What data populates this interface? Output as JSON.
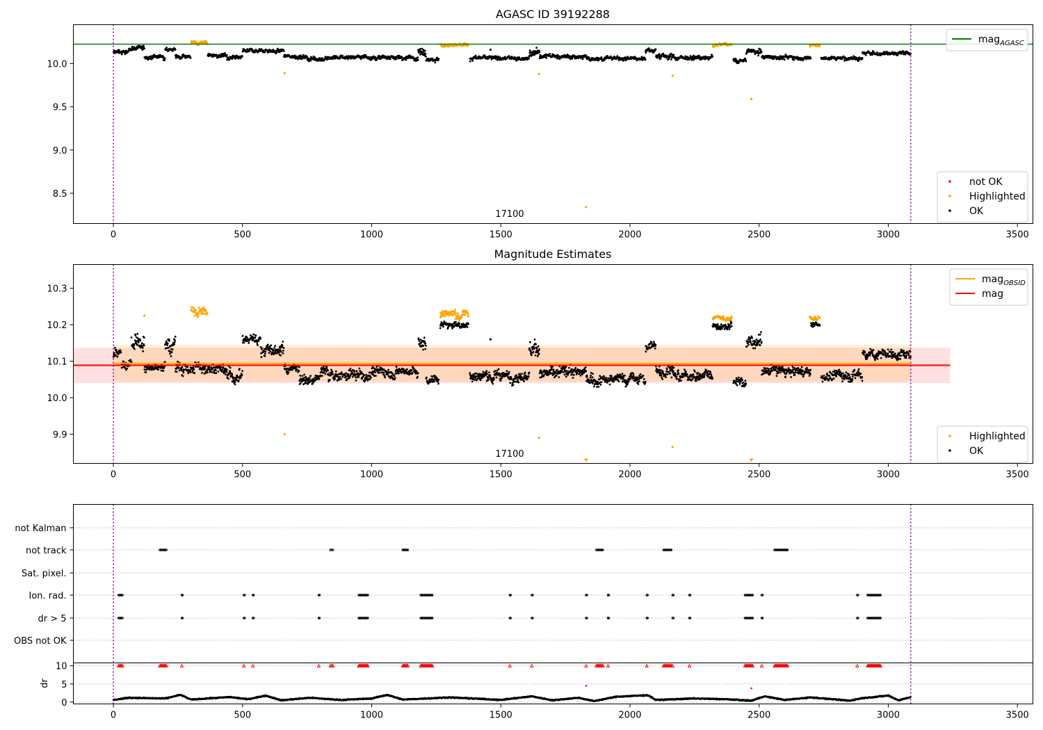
{
  "chart_data": [
    {
      "type": "scatter",
      "title": "AGASC ID 39192288",
      "xlim": [
        -155,
        3560
      ],
      "ylim": [
        8.15,
        10.45
      ],
      "xticks": [
        "0",
        "500",
        "1000",
        "1500",
        "2000",
        "2500",
        "3000",
        "3500"
      ],
      "yticks": [
        "8.5",
        "9.0",
        "9.5",
        "10.0"
      ],
      "obsid_label": "17100",
      "obsid_lines": [
        0,
        3087
      ],
      "reference_line": {
        "name": "mag",
        "sub": "AGASC",
        "value": 10.225,
        "color": "#008000",
        "x_end": 3560
      },
      "legend_top": [
        {
          "label": "mag",
          "sub": "AGASC",
          "color": "#008000"
        }
      ],
      "legend_bottom": [
        {
          "label": "not OK",
          "color": "#ff0000"
        },
        {
          "label": "Highlighted",
          "color": "#ffa500"
        },
        {
          "label": "OK",
          "color": "#000000"
        }
      ],
      "series": [
        {
          "name": "OK",
          "color": "#000000",
          "segments": [
            [
              0,
              60,
              10.13,
              0.025
            ],
            [
              60,
              120,
              10.18,
              0.02
            ],
            [
              120,
              200,
              10.08,
              0.02
            ],
            [
              200,
              240,
              10.17,
              0.02
            ],
            [
              240,
              300,
              10.08,
              0.02
            ],
            [
              365,
              440,
              10.09,
              0.02
            ],
            [
              440,
              500,
              10.06,
              0.02
            ],
            [
              500,
              570,
              10.15,
              0.02
            ],
            [
              570,
              660,
              10.15,
              0.02
            ],
            [
              660,
              750,
              10.08,
              0.02
            ],
            [
              750,
              850,
              10.06,
              0.02
            ],
            [
              850,
              1000,
              10.07,
              0.02
            ],
            [
              1000,
              1180,
              10.07,
              0.02
            ],
            [
              1180,
              1210,
              10.14,
              0.04
            ],
            [
              1210,
              1260,
              10.05,
              0.02
            ],
            [
              1380,
              1610,
              10.06,
              0.02
            ],
            [
              1610,
              1650,
              10.12,
              0.04
            ],
            [
              1650,
              1830,
              10.08,
              0.02
            ],
            [
              1830,
              2060,
              10.06,
              0.02
            ],
            [
              2060,
              2100,
              10.15,
              0.02
            ],
            [
              2100,
              2170,
              10.08,
              0.03
            ],
            [
              2170,
              2320,
              10.07,
              0.02
            ],
            [
              2400,
              2450,
              10.04,
              0.02
            ],
            [
              2450,
              2510,
              10.14,
              0.03
            ],
            [
              2510,
              2700,
              10.07,
              0.02
            ],
            [
              2740,
              2900,
              10.06,
              0.02
            ],
            [
              2900,
              3087,
              10.12,
              0.02
            ]
          ],
          "points": [
            [
              1460,
              10.16
            ]
          ]
        },
        {
          "name": "Highlighted",
          "color": "#ffa500",
          "segments": [
            [
              300,
              365,
              10.24,
              0.015
            ],
            [
              1265,
              1375,
              10.22,
              0.015
            ],
            [
              2320,
              2395,
              10.21,
              0.015
            ],
            [
              2695,
              2735,
              10.21,
              0.01
            ]
          ],
          "points": [
            [
              663,
              9.89
            ],
            [
              1648,
              9.88
            ],
            [
              1830,
              8.34
            ],
            [
              2165,
              9.86
            ],
            [
              2470,
              9.59
            ]
          ]
        }
      ]
    },
    {
      "type": "scatter",
      "title": "Magnitude Estimates",
      "xlim": [
        -155,
        3560
      ],
      "ylim": [
        9.82,
        10.365
      ],
      "xticks": [
        "0",
        "500",
        "1000",
        "1500",
        "2000",
        "2500",
        "3000",
        "3500"
      ],
      "yticks": [
        "9.9",
        "10.0",
        "10.1",
        "10.2",
        "10.3"
      ],
      "obsid_label": "17100",
      "obsid_lines": [
        0,
        3087
      ],
      "bands": [
        {
          "y0": 10.04,
          "y1": 10.137,
          "x0": -155,
          "x1": 3240,
          "color": "#ff0000",
          "opacity": 0.12
        },
        {
          "y0": 10.045,
          "y1": 10.145,
          "x0": 0,
          "x1": 3087,
          "color": "#ffa500",
          "opacity": 0.16
        }
      ],
      "lines": [
        {
          "name": "mag",
          "sub": "OBSID",
          "value": 10.094,
          "color": "#ffa500",
          "x0": 0,
          "x1": 3087
        },
        {
          "name": "mag",
          "value": 10.089,
          "color": "#ff0000",
          "x0": -155,
          "x1": 3240
        }
      ],
      "legend_top": [
        {
          "label": "mag",
          "sub": "OBSID",
          "color": "#ffa500"
        },
        {
          "label": "mag",
          "color": "#ff0000"
        }
      ],
      "legend_bottom": [
        {
          "label": "Highlighted",
          "color": "#ffa500"
        },
        {
          "label": "OK",
          "color": "#000000"
        }
      ],
      "series": [
        {
          "name": "OK",
          "color": "#000000",
          "segments": [
            [
              0,
              30,
              10.12,
              0.012
            ],
            [
              30,
              70,
              10.09,
              0.012
            ],
            [
              70,
              120,
              10.16,
              0.02
            ],
            [
              120,
              200,
              10.08,
              0.012
            ],
            [
              200,
              240,
              10.15,
              0.02
            ],
            [
              240,
              300,
              10.08,
              0.015
            ],
            [
              300,
              365,
              10.08,
              0.015
            ],
            [
              365,
              440,
              10.08,
              0.012
            ],
            [
              440,
              500,
              10.06,
              0.015
            ],
            [
              500,
              570,
              10.16,
              0.012
            ],
            [
              570,
              660,
              10.13,
              0.015
            ],
            [
              660,
              720,
              10.08,
              0.012
            ],
            [
              720,
              800,
              10.05,
              0.012
            ],
            [
              800,
              850,
              10.07,
              0.015
            ],
            [
              850,
              1000,
              10.06,
              0.012
            ],
            [
              1000,
              1180,
              10.07,
              0.012
            ],
            [
              1180,
              1210,
              10.15,
              0.02
            ],
            [
              1210,
              1260,
              10.05,
              0.012
            ],
            [
              1265,
              1375,
              10.2,
              0.008
            ],
            [
              1380,
              1610,
              10.06,
              0.012
            ],
            [
              1610,
              1650,
              10.13,
              0.02
            ],
            [
              1650,
              1830,
              10.07,
              0.012
            ],
            [
              1830,
              2060,
              10.05,
              0.012
            ],
            [
              2060,
              2100,
              10.14,
              0.012
            ],
            [
              2100,
              2170,
              10.08,
              0.015
            ],
            [
              2170,
              2320,
              10.06,
              0.012
            ],
            [
              2320,
              2395,
              10.2,
              0.01
            ],
            [
              2400,
              2450,
              10.04,
              0.01
            ],
            [
              2450,
              2510,
              10.15,
              0.02
            ],
            [
              2510,
              2700,
              10.07,
              0.012
            ],
            [
              2700,
              2735,
              10.2,
              0.005
            ],
            [
              2740,
              2900,
              10.06,
              0.012
            ],
            [
              2900,
              3087,
              10.12,
              0.012
            ]
          ],
          "points": [
            [
              1460,
              10.16
            ]
          ]
        },
        {
          "name": "Highlighted",
          "color": "#ffa500",
          "segments": [
            [
              300,
              365,
              10.24,
              0.012
            ],
            [
              1265,
              1375,
              10.23,
              0.01
            ],
            [
              2320,
              2395,
              10.22,
              0.005
            ],
            [
              2695,
              2735,
              10.22,
              0.005
            ]
          ],
          "points": [
            [
              663,
              9.9
            ],
            [
              1648,
              9.89
            ],
            [
              2165,
              9.865
            ]
          ],
          "clipped": [
            [
              1830
            ],
            [
              2470
            ]
          ],
          "extra": [
            [
              120,
              10.225
            ]
          ]
        }
      ]
    },
    {
      "type": "scatter",
      "title": "",
      "xlim": [
        -155,
        3560
      ],
      "xticks": [
        "0",
        "500",
        "1000",
        "1500",
        "2000",
        "2500",
        "3000",
        "3500"
      ],
      "obsid_lines": [
        0,
        3087
      ],
      "categories": [
        "not Kalman",
        "not track",
        "Sat. pixel.",
        "Ion. rad.",
        "dr > 5",
        "OBS not OK"
      ],
      "flags": {
        "not track": [
          [
            180,
            205
          ],
          [
            840,
            850
          ],
          [
            1120,
            1140
          ],
          [
            1870,
            1895
          ],
          [
            2130,
            2160
          ],
          [
            2560,
            2610
          ]
        ],
        "Ion. rad.": [
          [
            20,
            35
          ],
          [
            265,
            268
          ],
          [
            505,
            508
          ],
          [
            540,
            543
          ],
          [
            795,
            798
          ],
          [
            950,
            985
          ],
          [
            1190,
            1235
          ],
          [
            1535,
            1538
          ],
          [
            1620,
            1623
          ],
          [
            1830,
            1833
          ],
          [
            1915,
            1918
          ],
          [
            2065,
            2068
          ],
          [
            2165,
            2168
          ],
          [
            2230,
            2233
          ],
          [
            2445,
            2475
          ],
          [
            2510,
            2513
          ],
          [
            2880,
            2883
          ],
          [
            2920,
            2970
          ]
        ],
        "dr > 5": [
          [
            20,
            35
          ],
          [
            265,
            268
          ],
          [
            505,
            508
          ],
          [
            540,
            543
          ],
          [
            795,
            798
          ],
          [
            950,
            985
          ],
          [
            1190,
            1235
          ],
          [
            1535,
            1538
          ],
          [
            1620,
            1623
          ],
          [
            1830,
            1833
          ],
          [
            1915,
            1918
          ],
          [
            2065,
            2068
          ],
          [
            2165,
            2168
          ],
          [
            2230,
            2233
          ],
          [
            2445,
            2475
          ],
          [
            2510,
            2513
          ],
          [
            2880,
            2883
          ],
          [
            2920,
            2970
          ]
        ]
      },
      "dr": {
        "ylabel": "dr",
        "yticks": [
          "0",
          "5",
          "10"
        ],
        "ylim": [
          -0.5,
          10.8
        ],
        "outliers": [
          [
            20,
            35
          ],
          [
            180,
            205
          ],
          [
            265,
            268
          ],
          [
            505,
            508
          ],
          [
            540,
            543
          ],
          [
            795,
            798
          ],
          [
            840,
            850
          ],
          [
            950,
            985
          ],
          [
            1120,
            1140
          ],
          [
            1190,
            1235
          ],
          [
            1535,
            1538
          ],
          [
            1620,
            1623
          ],
          [
            1830,
            1833
          ],
          [
            1870,
            1895
          ],
          [
            1915,
            1918
          ],
          [
            2065,
            2068
          ],
          [
            2130,
            2160
          ],
          [
            2165,
            2168
          ],
          [
            2230,
            2233
          ],
          [
            2445,
            2475
          ],
          [
            2510,
            2513
          ],
          [
            2560,
            2610
          ],
          [
            2880,
            2883
          ],
          [
            2920,
            2970
          ]
        ],
        "mid_points": [
          [
            1830,
            4.5
          ],
          [
            2470,
            3.8
          ]
        ],
        "baseline": [
          [
            0,
            0.6
          ],
          [
            60,
            1.2
          ],
          [
            200,
            1.0
          ],
          [
            260,
            2.0
          ],
          [
            300,
            0.7
          ],
          [
            450,
            1.4
          ],
          [
            520,
            0.8
          ],
          [
            590,
            1.8
          ],
          [
            650,
            0.5
          ],
          [
            760,
            1.2
          ],
          [
            880,
            0.6
          ],
          [
            1000,
            1.0
          ],
          [
            1060,
            2.0
          ],
          [
            1120,
            0.7
          ],
          [
            1300,
            1.3
          ],
          [
            1420,
            0.9
          ],
          [
            1500,
            0.6
          ],
          [
            1620,
            1.6
          ],
          [
            1700,
            0.5
          ],
          [
            1800,
            1.2
          ],
          [
            1860,
            0.3
          ],
          [
            1950,
            1.5
          ],
          [
            2070,
            1.9
          ],
          [
            2100,
            0.6
          ],
          [
            2250,
            1.0
          ],
          [
            2370,
            0.8
          ],
          [
            2470,
            0.4
          ],
          [
            2520,
            1.6
          ],
          [
            2600,
            0.6
          ],
          [
            2700,
            1.3
          ],
          [
            2850,
            0.4
          ],
          [
            2900,
            1.1
          ],
          [
            3000,
            1.8
          ],
          [
            3040,
            0.5
          ],
          [
            3087,
            1.4
          ]
        ]
      }
    }
  ]
}
